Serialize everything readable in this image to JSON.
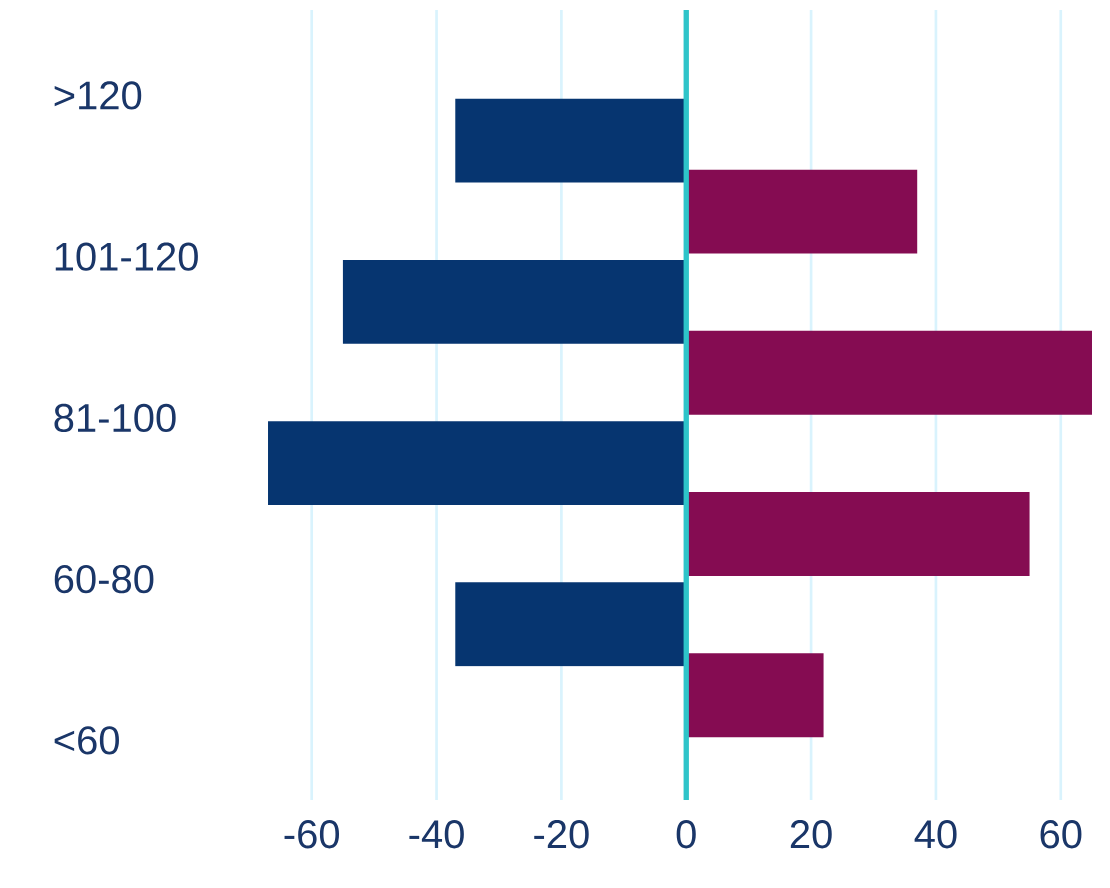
{
  "chart_data": {
    "type": "bar",
    "orientation": "horizontal",
    "categories": [
      ">120",
      "101-120",
      "81-100",
      "60-80",
      "<60"
    ],
    "series": [
      {
        "color": "#850c52",
        "values": [
          null,
          37,
          65,
          55,
          22
        ]
      },
      {
        "color": "#063570",
        "values": [
          -37,
          -55,
          -67,
          -37,
          null
        ]
      }
    ],
    "xlim": [
      -67,
      65
    ],
    "xticks": [
      -60,
      -40,
      -20,
      0,
      20,
      40,
      60
    ],
    "grid": "x",
    "ref_lines": [
      {
        "axis": "x",
        "value": 0,
        "color": "#2ec4c9"
      }
    ]
  }
}
